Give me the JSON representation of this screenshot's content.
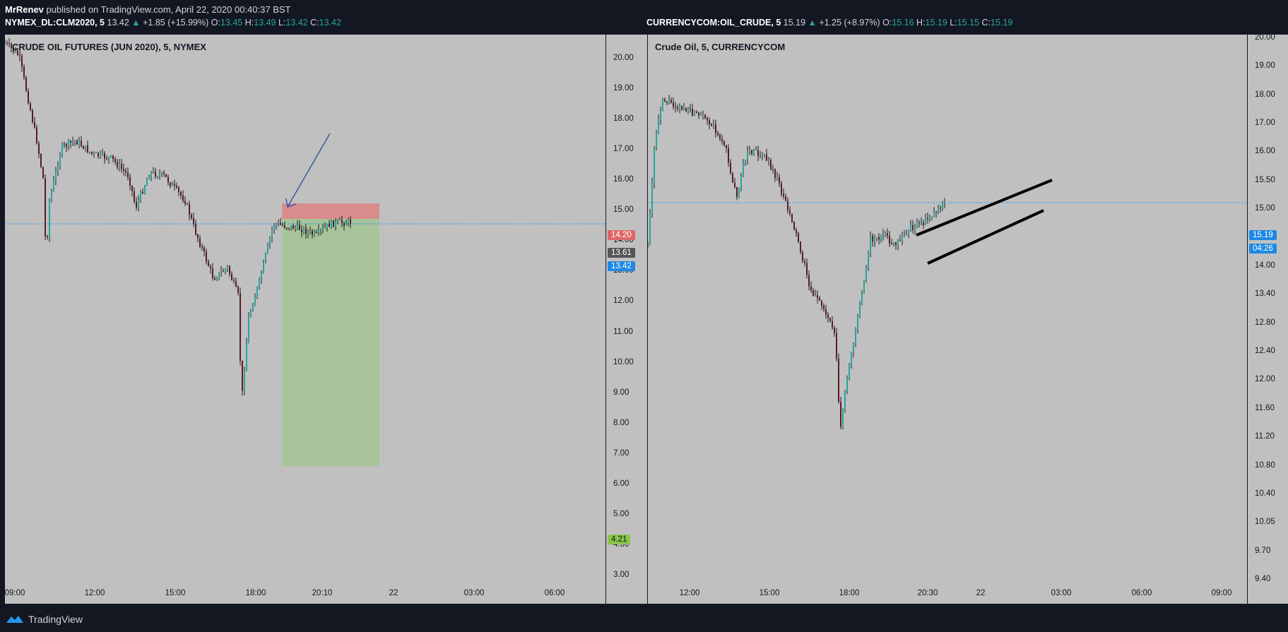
{
  "header": {
    "author": "MrRenev",
    "published_text": "published on TradingView.com, April 22, 2020 00:40:37 BST"
  },
  "left": {
    "ticker": {
      "symbol": "NYMEX_DL:CLM2020, 5",
      "last": "13.42",
      "change": "+1.85 (+15.99%)",
      "o": "13.45",
      "h": "13.49",
      "l": "13.42",
      "c": "13.42"
    },
    "title": "CRUDE OIL FUTURES (JUN 2020), 5, NYMEX",
    "y_ticks": [
      "20.00",
      "19.00",
      "18.00",
      "17.00",
      "16.00",
      "15.00",
      "14.00",
      "13.00",
      "12.00",
      "11.00",
      "10.00",
      "9.00",
      "8.00",
      "7.00",
      "6.00",
      "5.00",
      "4.00",
      "3.00"
    ],
    "x_ticks": [
      "09:00",
      "12:00",
      "15:00",
      "18:00",
      "20:10",
      "22",
      "03:00",
      "06:00"
    ],
    "tags": {
      "stop": "14.20",
      "entry": "13.61",
      "price": "13.42",
      "target": "4.21"
    },
    "colors": {
      "stop": "#e06666",
      "entry": "#555555",
      "price": "#2196f3",
      "target": "#8bc34a"
    }
  },
  "right": {
    "ticker": {
      "symbol": "CURRENCYCOM:OIL_CRUDE, 5",
      "last": "15.19",
      "change": "+1.25 (+8.97%)",
      "o": "15.16",
      "h": "15.19",
      "l": "15.15",
      "c": "15.19"
    },
    "title": "Crude Oil, 5, CURRENCYCOM",
    "y_ticks": [
      "20.00",
      "19.00",
      "18.00",
      "17.00",
      "16.00",
      "15.50",
      "15.00",
      "14.50",
      "14.00",
      "13.40",
      "12.80",
      "12.40",
      "12.00",
      "11.60",
      "11.20",
      "10.80",
      "10.40",
      "10.05",
      "9.70",
      "9.40"
    ],
    "x_ticks": [
      "12:00",
      "15:00",
      "18:00",
      "20:30",
      "22",
      "03:00",
      "06:00",
      "09:00"
    ],
    "tags": {
      "price": "15.19",
      "countdown": "04:26"
    },
    "colors": {
      "price": "#2196f3"
    }
  },
  "footer": {
    "brand": "TradingView"
  }
}
